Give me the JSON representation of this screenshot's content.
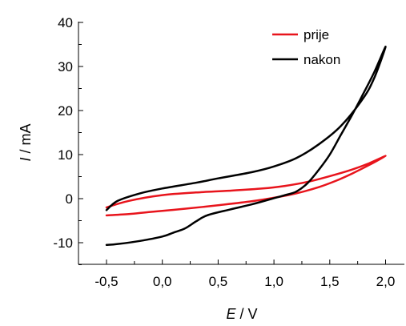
{
  "chart_data": {
    "type": "line",
    "title": "",
    "xlabel": {
      "symbol": "E",
      "unit": " / V"
    },
    "ylabel": {
      "symbol": "I",
      "unit": " / mA"
    },
    "xlim": [
      -0.8,
      2.2
    ],
    "ylim": [
      -15,
      40
    ],
    "x_ticks": [
      -0.5,
      0.0,
      0.5,
      1.0,
      1.5,
      2.0
    ],
    "x_tick_labels": [
      "-0,5",
      "0,0",
      "0,5",
      "1,0",
      "1,5",
      "2,0"
    ],
    "y_ticks": [
      -10,
      0,
      10,
      20,
      30,
      40
    ],
    "y_tick_labels": [
      "-10",
      "0",
      "10",
      "20",
      "30",
      "40"
    ],
    "grid": false,
    "legend_position": "top-right",
    "series": [
      {
        "name": "prije",
        "color": "#e8141c",
        "points": [
          [
            -0.5,
            -2.0
          ],
          [
            -0.3,
            -0.5
          ],
          [
            0.0,
            0.8
          ],
          [
            0.3,
            1.4
          ],
          [
            0.6,
            1.8
          ],
          [
            0.9,
            2.3
          ],
          [
            1.1,
            2.9
          ],
          [
            1.3,
            3.8
          ],
          [
            1.5,
            5.1
          ],
          [
            1.7,
            6.6
          ],
          [
            1.85,
            8.0
          ],
          [
            2.0,
            9.7
          ],
          [
            1.85,
            7.6
          ],
          [
            1.7,
            5.7
          ],
          [
            1.55,
            4.0
          ],
          [
            1.4,
            2.6
          ],
          [
            1.2,
            1.2
          ],
          [
            1.0,
            0.2
          ],
          [
            0.8,
            -0.6
          ],
          [
            0.5,
            -1.5
          ],
          [
            0.2,
            -2.3
          ],
          [
            -0.1,
            -3.0
          ],
          [
            -0.3,
            -3.5
          ],
          [
            -0.5,
            -3.8
          ]
        ]
      },
      {
        "name": "nakon",
        "color": "#000000",
        "points": [
          [
            -0.5,
            -2.6
          ],
          [
            -0.4,
            -0.5
          ],
          [
            -0.2,
            1.2
          ],
          [
            0.0,
            2.3
          ],
          [
            0.3,
            3.6
          ],
          [
            0.5,
            4.6
          ],
          [
            0.8,
            6.0
          ],
          [
            1.0,
            7.3
          ],
          [
            1.2,
            9.2
          ],
          [
            1.4,
            12.3
          ],
          [
            1.6,
            16.5
          ],
          [
            1.8,
            22.8
          ],
          [
            1.9,
            27.5
          ],
          [
            2.0,
            34.5
          ],
          [
            1.9,
            28.8
          ],
          [
            1.8,
            23.8
          ],
          [
            1.7,
            19.0
          ],
          [
            1.6,
            14.5
          ],
          [
            1.5,
            10.0
          ],
          [
            1.4,
            6.5
          ],
          [
            1.3,
            3.5
          ],
          [
            1.2,
            1.6
          ],
          [
            1.1,
            0.8
          ],
          [
            1.0,
            0.1
          ],
          [
            0.8,
            -1.3
          ],
          [
            0.6,
            -2.5
          ],
          [
            0.4,
            -3.8
          ],
          [
            0.3,
            -5.2
          ],
          [
            0.2,
            -6.8
          ],
          [
            0.1,
            -7.7
          ],
          [
            0.0,
            -8.6
          ],
          [
            -0.2,
            -9.6
          ],
          [
            -0.4,
            -10.3
          ],
          [
            -0.5,
            -10.5
          ]
        ]
      }
    ]
  }
}
